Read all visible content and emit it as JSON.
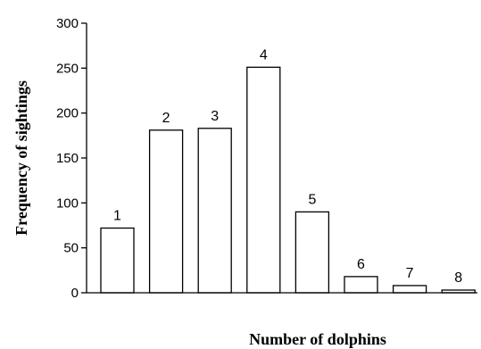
{
  "chart_data": {
    "type": "bar",
    "title": "",
    "xlabel": "Number of dolphins",
    "ylabel": "Frequency of sightings",
    "ylim": [
      0,
      300
    ],
    "yticks": [
      0,
      50,
      100,
      150,
      200,
      250,
      300
    ],
    "grid": false,
    "legend": "none",
    "categories": [
      "1",
      "2",
      "3",
      "4",
      "5",
      "6",
      "7",
      "8"
    ],
    "values": [
      72,
      181,
      183,
      251,
      90,
      18,
      8,
      3
    ],
    "bar_labels": [
      "1",
      "2",
      "3",
      "4",
      "5",
      "6",
      "7",
      "8"
    ],
    "colors": {
      "bar_fill": "#ffffff",
      "bar_stroke": "#000000",
      "axis": "#000000"
    }
  }
}
